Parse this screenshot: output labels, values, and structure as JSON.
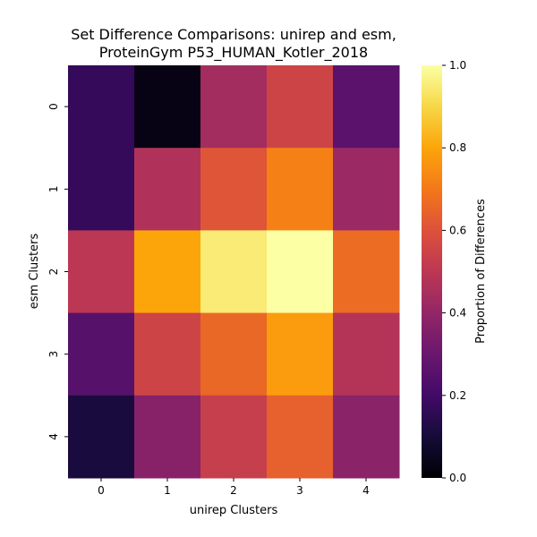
{
  "chart_data": {
    "type": "heatmap",
    "title_line1": "Set Difference Comparisons: unirep and esm,",
    "title_line2": "ProteinGym P53_HUMAN_Kotler_2018",
    "xlabel": "unirep Clusters",
    "ylabel": "esm Clusters",
    "x_categories": [
      "0",
      "1",
      "2",
      "3",
      "4"
    ],
    "y_categories": [
      "0",
      "1",
      "2",
      "3",
      "4"
    ],
    "values": [
      [
        0.17,
        0.03,
        0.44,
        0.55,
        0.26
      ],
      [
        0.17,
        0.47,
        0.61,
        0.72,
        0.42
      ],
      [
        0.5,
        0.8,
        0.95,
        1.0,
        0.67
      ],
      [
        0.25,
        0.55,
        0.66,
        0.78,
        0.48
      ],
      [
        0.11,
        0.37,
        0.53,
        0.64,
        0.38
      ]
    ],
    "colormap": "inferno",
    "vmin": 0.0,
    "vmax": 1.0,
    "colorbar_label": "Proportion of Differences",
    "colorbar_ticks": [
      "0.0",
      "0.2",
      "0.4",
      "0.6",
      "0.8",
      "1.0"
    ],
    "grid": false
  }
}
